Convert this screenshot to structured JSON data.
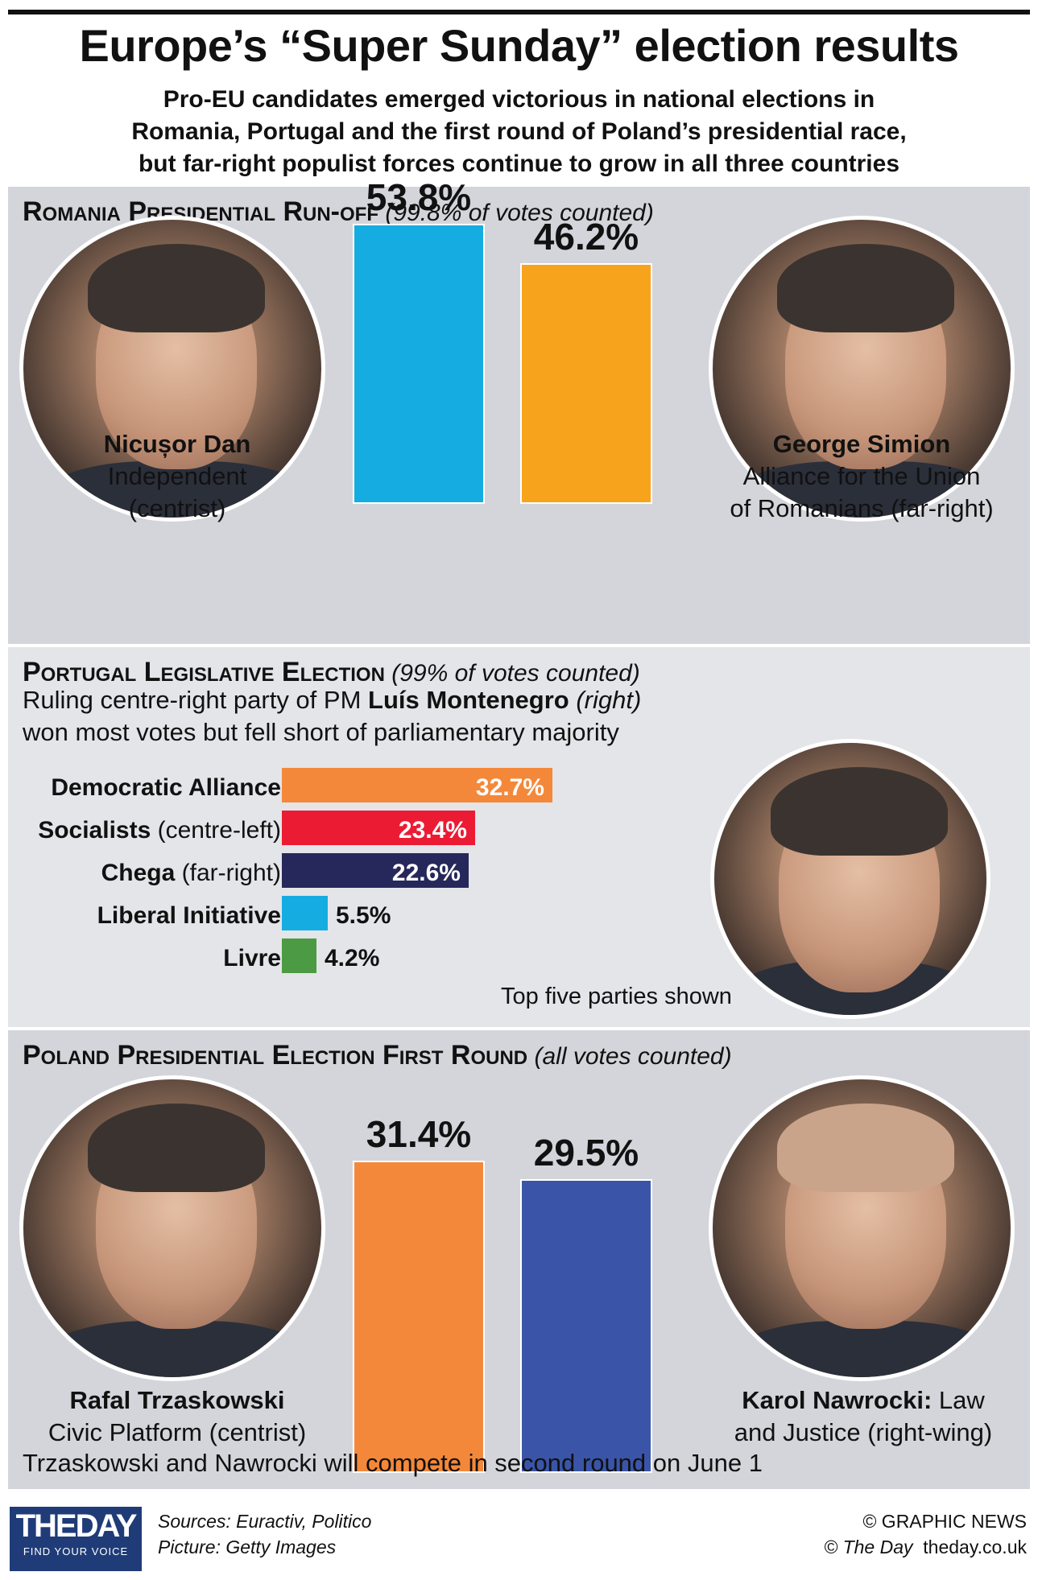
{
  "title": "Europe’s “Super Sunday” election results",
  "subtitle": [
    "Pro-EU candidates emerged victorious in national elections in",
    "Romania, Portugal and the first round of Poland’s presidential race,",
    "but far-right populist forces continue to grow in all three countries"
  ],
  "romania": {
    "heading": "Romania Presidential Run-off",
    "note": "(99.8% of votes counted)",
    "left": {
      "name": "Nicușor Dan",
      "line1": "Independent",
      "line2": "(centrist)"
    },
    "right": {
      "name": "George Simion",
      "line1": "Alliance for the Union",
      "line2": "of Romanians (far-right)"
    }
  },
  "portugal": {
    "heading": "Portugal Legislative Election",
    "note": "(99% of votes counted)",
    "desc_line1_a": "Ruling centre-right party of PM ",
    "desc_line1_b": "Luís Montenegro",
    "desc_line1_c": " (right)",
    "desc_line2": "won most votes but fell short of parliamentary majority",
    "top_five_note": "Top five parties shown"
  },
  "poland": {
    "heading": "Poland Presidential Election First Round",
    "note": "(all votes counted)",
    "left": {
      "name": "Rafal Trzaskowski",
      "line1": "Civic Platform (centrist)"
    },
    "right": {
      "name": "Karol Nawrocki:",
      "line1_tail": " Law",
      "line2": "and Justice (right-wing)"
    },
    "second_round": "Trzaskowski and Nawrocki will compete in second round on June 1"
  },
  "footer": {
    "logo_main": "THEDAY",
    "logo_sub": "FIND YOUR VOICE",
    "sources": "Sources: Euractiv, Politico",
    "picture": "Picture: Getty Images",
    "credit1": "© GRAPHIC NEWS",
    "credit2a": "© The Day",
    "credit2b": "theday.co.uk"
  },
  "colors": {
    "blue_light": "#15ade1",
    "orange": "#f8a31c",
    "orange_dark": "#f4883a",
    "red": "#ec1b34",
    "navy": "#26275a",
    "green": "#4c9a43",
    "poland_blue": "#3a55a8"
  },
  "chart_data": [
    {
      "type": "bar",
      "categories": [
        "Nicușor Dan",
        "George Simion"
      ],
      "values": [
        53.8,
        46.2
      ],
      "labels": [
        "53.8%",
        "46.2%"
      ],
      "colors": [
        "#15ade1",
        "#f8a31c"
      ],
      "ylim": [
        0,
        53.8
      ]
    },
    {
      "type": "bar",
      "orientation": "horizontal",
      "categories": [
        "Democratic Alliance",
        "Socialists",
        "Chega",
        "Liberal Initiative",
        "Livre"
      ],
      "qualifiers": [
        "",
        " (centre-left)",
        " (far-right)",
        "",
        ""
      ],
      "values": [
        32.7,
        23.4,
        22.6,
        5.5,
        4.2
      ],
      "labels": [
        "32.7%",
        "23.4%",
        "22.6%",
        "5.5%",
        "4.2%"
      ],
      "colors": [
        "#f4883a",
        "#ec1b34",
        "#26275a",
        "#15ade1",
        "#4c9a43"
      ],
      "xlim": [
        0,
        32.7
      ]
    },
    {
      "type": "bar",
      "categories": [
        "Rafal Trzaskowski",
        "Karol Nawrocki"
      ],
      "values": [
        31.4,
        29.5
      ],
      "labels": [
        "31.4%",
        "29.5%"
      ],
      "colors": [
        "#f4883a",
        "#3a55a8"
      ],
      "ylim": [
        0,
        31.4
      ]
    }
  ]
}
